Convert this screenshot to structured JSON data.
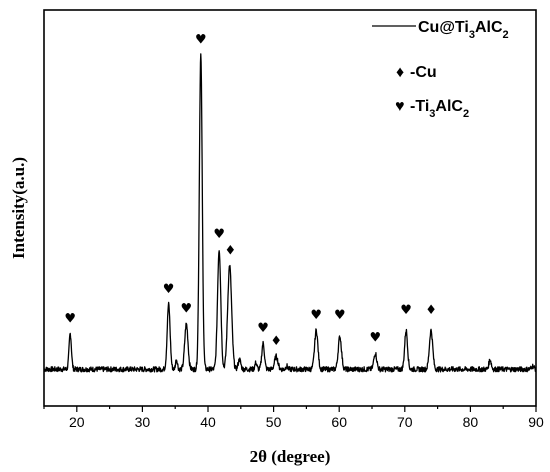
{
  "chart_data": {
    "type": "line",
    "xlabel": "2θ (degree)",
    "ylabel": "Intensity(a.u.)",
    "xlim": [
      15,
      90
    ],
    "xticks": [
      20,
      30,
      40,
      50,
      60,
      70,
      80,
      90
    ],
    "y_ticks_shown": false,
    "legend": {
      "placement": "top-right",
      "series_label": "Cu@Ti3AlC2",
      "series_label_parts": [
        "Cu@Ti",
        "3",
        "AlC",
        "2"
      ],
      "marker_keys": [
        {
          "symbol": "♦",
          "text": "-Cu",
          "parts": [
            "-Cu"
          ]
        },
        {
          "symbol": "♥",
          "text": "-Ti3AlC2",
          "parts": [
            "-Ti",
            "3",
            "AlC",
            "2"
          ]
        }
      ]
    },
    "series": [
      {
        "name": "Cu@Ti3AlC2",
        "baseline": 3,
        "noise": 0.8,
        "peaks": [
          {
            "x": 19.0,
            "y": 14,
            "w": 0.18
          },
          {
            "x": 34.0,
            "y": 23,
            "w": 0.22
          },
          {
            "x": 35.2,
            "y": 6,
            "w": 0.15
          },
          {
            "x": 36.7,
            "y": 17,
            "w": 0.25
          },
          {
            "x": 38.9,
            "y": 100,
            "w": 0.22
          },
          {
            "x": 41.7,
            "y": 40,
            "w": 0.25
          },
          {
            "x": 43.3,
            "y": 35,
            "w": 0.3
          },
          {
            "x": 44.8,
            "y": 6,
            "w": 0.2
          },
          {
            "x": 47.3,
            "y": 5,
            "w": 0.15
          },
          {
            "x": 48.4,
            "y": 11,
            "w": 0.2
          },
          {
            "x": 50.4,
            "y": 7,
            "w": 0.25
          },
          {
            "x": 52.0,
            "y": 4,
            "w": 0.15
          },
          {
            "x": 56.5,
            "y": 15,
            "w": 0.25
          },
          {
            "x": 60.1,
            "y": 13,
            "w": 0.25
          },
          {
            "x": 65.5,
            "y": 8,
            "w": 0.22
          },
          {
            "x": 70.2,
            "y": 15,
            "w": 0.22
          },
          {
            "x": 74.0,
            "y": 15,
            "w": 0.25
          },
          {
            "x": 83.0,
            "y": 6,
            "w": 0.18
          },
          {
            "x": 86.8,
            "y": 3,
            "w": 0.2
          },
          {
            "x": 89.5,
            "y": 4,
            "w": 0.2
          }
        ]
      }
    ],
    "annotations": [
      {
        "x": 19.0,
        "y": 17.5,
        "symbol": "♥",
        "phase": "Ti3AlC2"
      },
      {
        "x": 34.0,
        "y": 26.5,
        "symbol": "♥",
        "phase": "Ti3AlC2"
      },
      {
        "x": 36.7,
        "y": 20.5,
        "symbol": "♥",
        "phase": "Ti3AlC2"
      },
      {
        "x": 38.9,
        "y": 103.5,
        "symbol": "♥",
        "phase": "Ti3AlC2"
      },
      {
        "x": 41.7,
        "y": 43.5,
        "symbol": "♥",
        "phase": "Ti3AlC2"
      },
      {
        "x": 43.4,
        "y": 38.5,
        "symbol": "♦",
        "phase": "Cu"
      },
      {
        "x": 48.4,
        "y": 14.5,
        "symbol": "♥",
        "phase": "Ti3AlC2"
      },
      {
        "x": 50.4,
        "y": 10.5,
        "symbol": "♦",
        "phase": "Cu"
      },
      {
        "x": 56.5,
        "y": 18.5,
        "symbol": "♥",
        "phase": "Ti3AlC2"
      },
      {
        "x": 60.1,
        "y": 18.5,
        "symbol": "♥",
        "phase": "Ti3AlC2"
      },
      {
        "x": 65.5,
        "y": 11.5,
        "symbol": "♥",
        "phase": "Ti3AlC2"
      },
      {
        "x": 70.2,
        "y": 20,
        "symbol": "♥",
        "phase": "Ti3AlC2"
      },
      {
        "x": 74.0,
        "y": 20,
        "symbol": "♦",
        "phase": "Cu"
      }
    ],
    "grid": false
  }
}
